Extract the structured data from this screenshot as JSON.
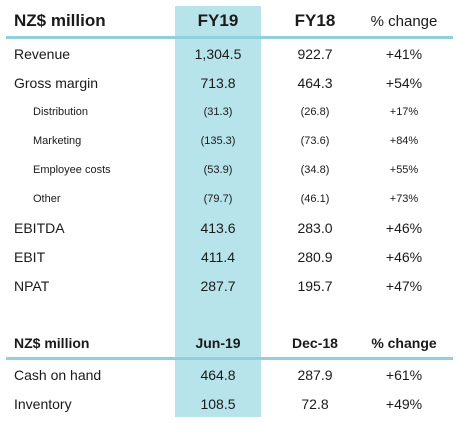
{
  "table1": {
    "header": {
      "label": "NZ$ million",
      "col_a": "FY19",
      "col_b": "FY18",
      "col_c": "% change"
    },
    "rows": [
      {
        "label": "Revenue",
        "a": "1,304.5",
        "b": "922.7",
        "c": "+41%"
      },
      {
        "label": "Gross margin",
        "a": "713.8",
        "b": "464.3",
        "c": "+54%"
      },
      {
        "label": "Distribution",
        "a": "(31.3)",
        "b": "(26.8)",
        "c": "+17%"
      },
      {
        "label": "Marketing",
        "a": "(135.3)",
        "b": "(73.6)",
        "c": "+84%"
      },
      {
        "label": "Employee costs",
        "a": "(53.9)",
        "b": "(34.8)",
        "c": "+55%"
      },
      {
        "label": "Other",
        "a": "(79.7)",
        "b": "(46.1)",
        "c": "+73%"
      },
      {
        "label": "EBITDA",
        "a": "413.6",
        "b": "283.0",
        "c": "+46%"
      },
      {
        "label": "EBIT",
        "a": "411.4",
        "b": "280.9",
        "c": "+46%"
      },
      {
        "label": "NPAT",
        "a": "287.7",
        "b": "195.7",
        "c": "+47%"
      }
    ]
  },
  "table2": {
    "header": {
      "label": "NZ$ million",
      "col_a": "Jun-19",
      "col_b": "Dec-18",
      "col_c": "% change"
    },
    "rows": [
      {
        "label": "Cash on hand",
        "a": "464.8",
        "b": "287.9",
        "c": "+61%"
      },
      {
        "label": "Inventory",
        "a": "108.5",
        "b": "72.8",
        "c": "+49%"
      }
    ]
  },
  "colors": {
    "highlight_column": "#b7e3ea",
    "rule": "#8fd0dc"
  }
}
